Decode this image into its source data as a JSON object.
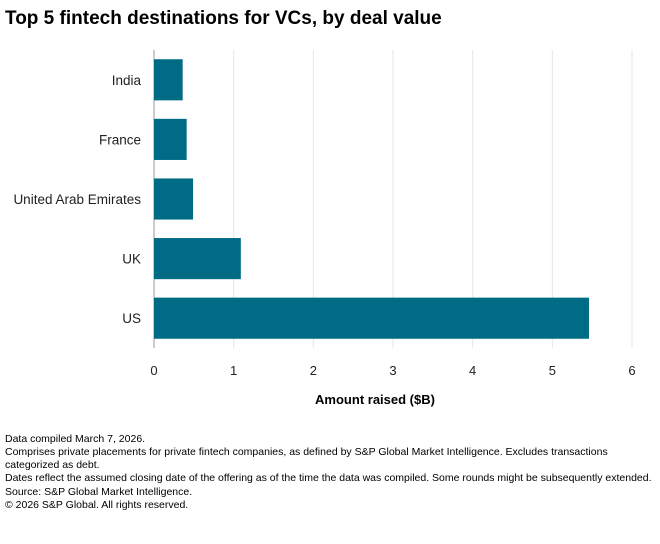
{
  "title": "Top 5 fintech destinations for VCs, by deal value",
  "chart_data": {
    "type": "bar",
    "orientation": "horizontal",
    "categories": [
      "India",
      "France",
      "United Arab Emirates",
      "UK",
      "US"
    ],
    "values": [
      0.36,
      0.41,
      0.49,
      1.09,
      5.46
    ],
    "xlabel": "Amount raised ($B)",
    "ylabel": "",
    "xlim": [
      0,
      6
    ],
    "xticks": [
      "0",
      "1",
      "2",
      "3",
      "4",
      "5",
      "6"
    ],
    "grid": true,
    "bar_color": "#006b85"
  },
  "footnotes": [
    "Data compiled March 7, 2026.",
    "Comprises private placements for private fintech companies, as defined by S&P Global Market Intelligence. Excludes transactions categorized as debt.",
    "Dates reflect the assumed closing date of the offering as of the time the data was compiled. Some rounds might be subsequently extended.",
    "Source: S&P Global Market Intelligence.",
    "© 2026 S&P Global. All rights reserved."
  ]
}
